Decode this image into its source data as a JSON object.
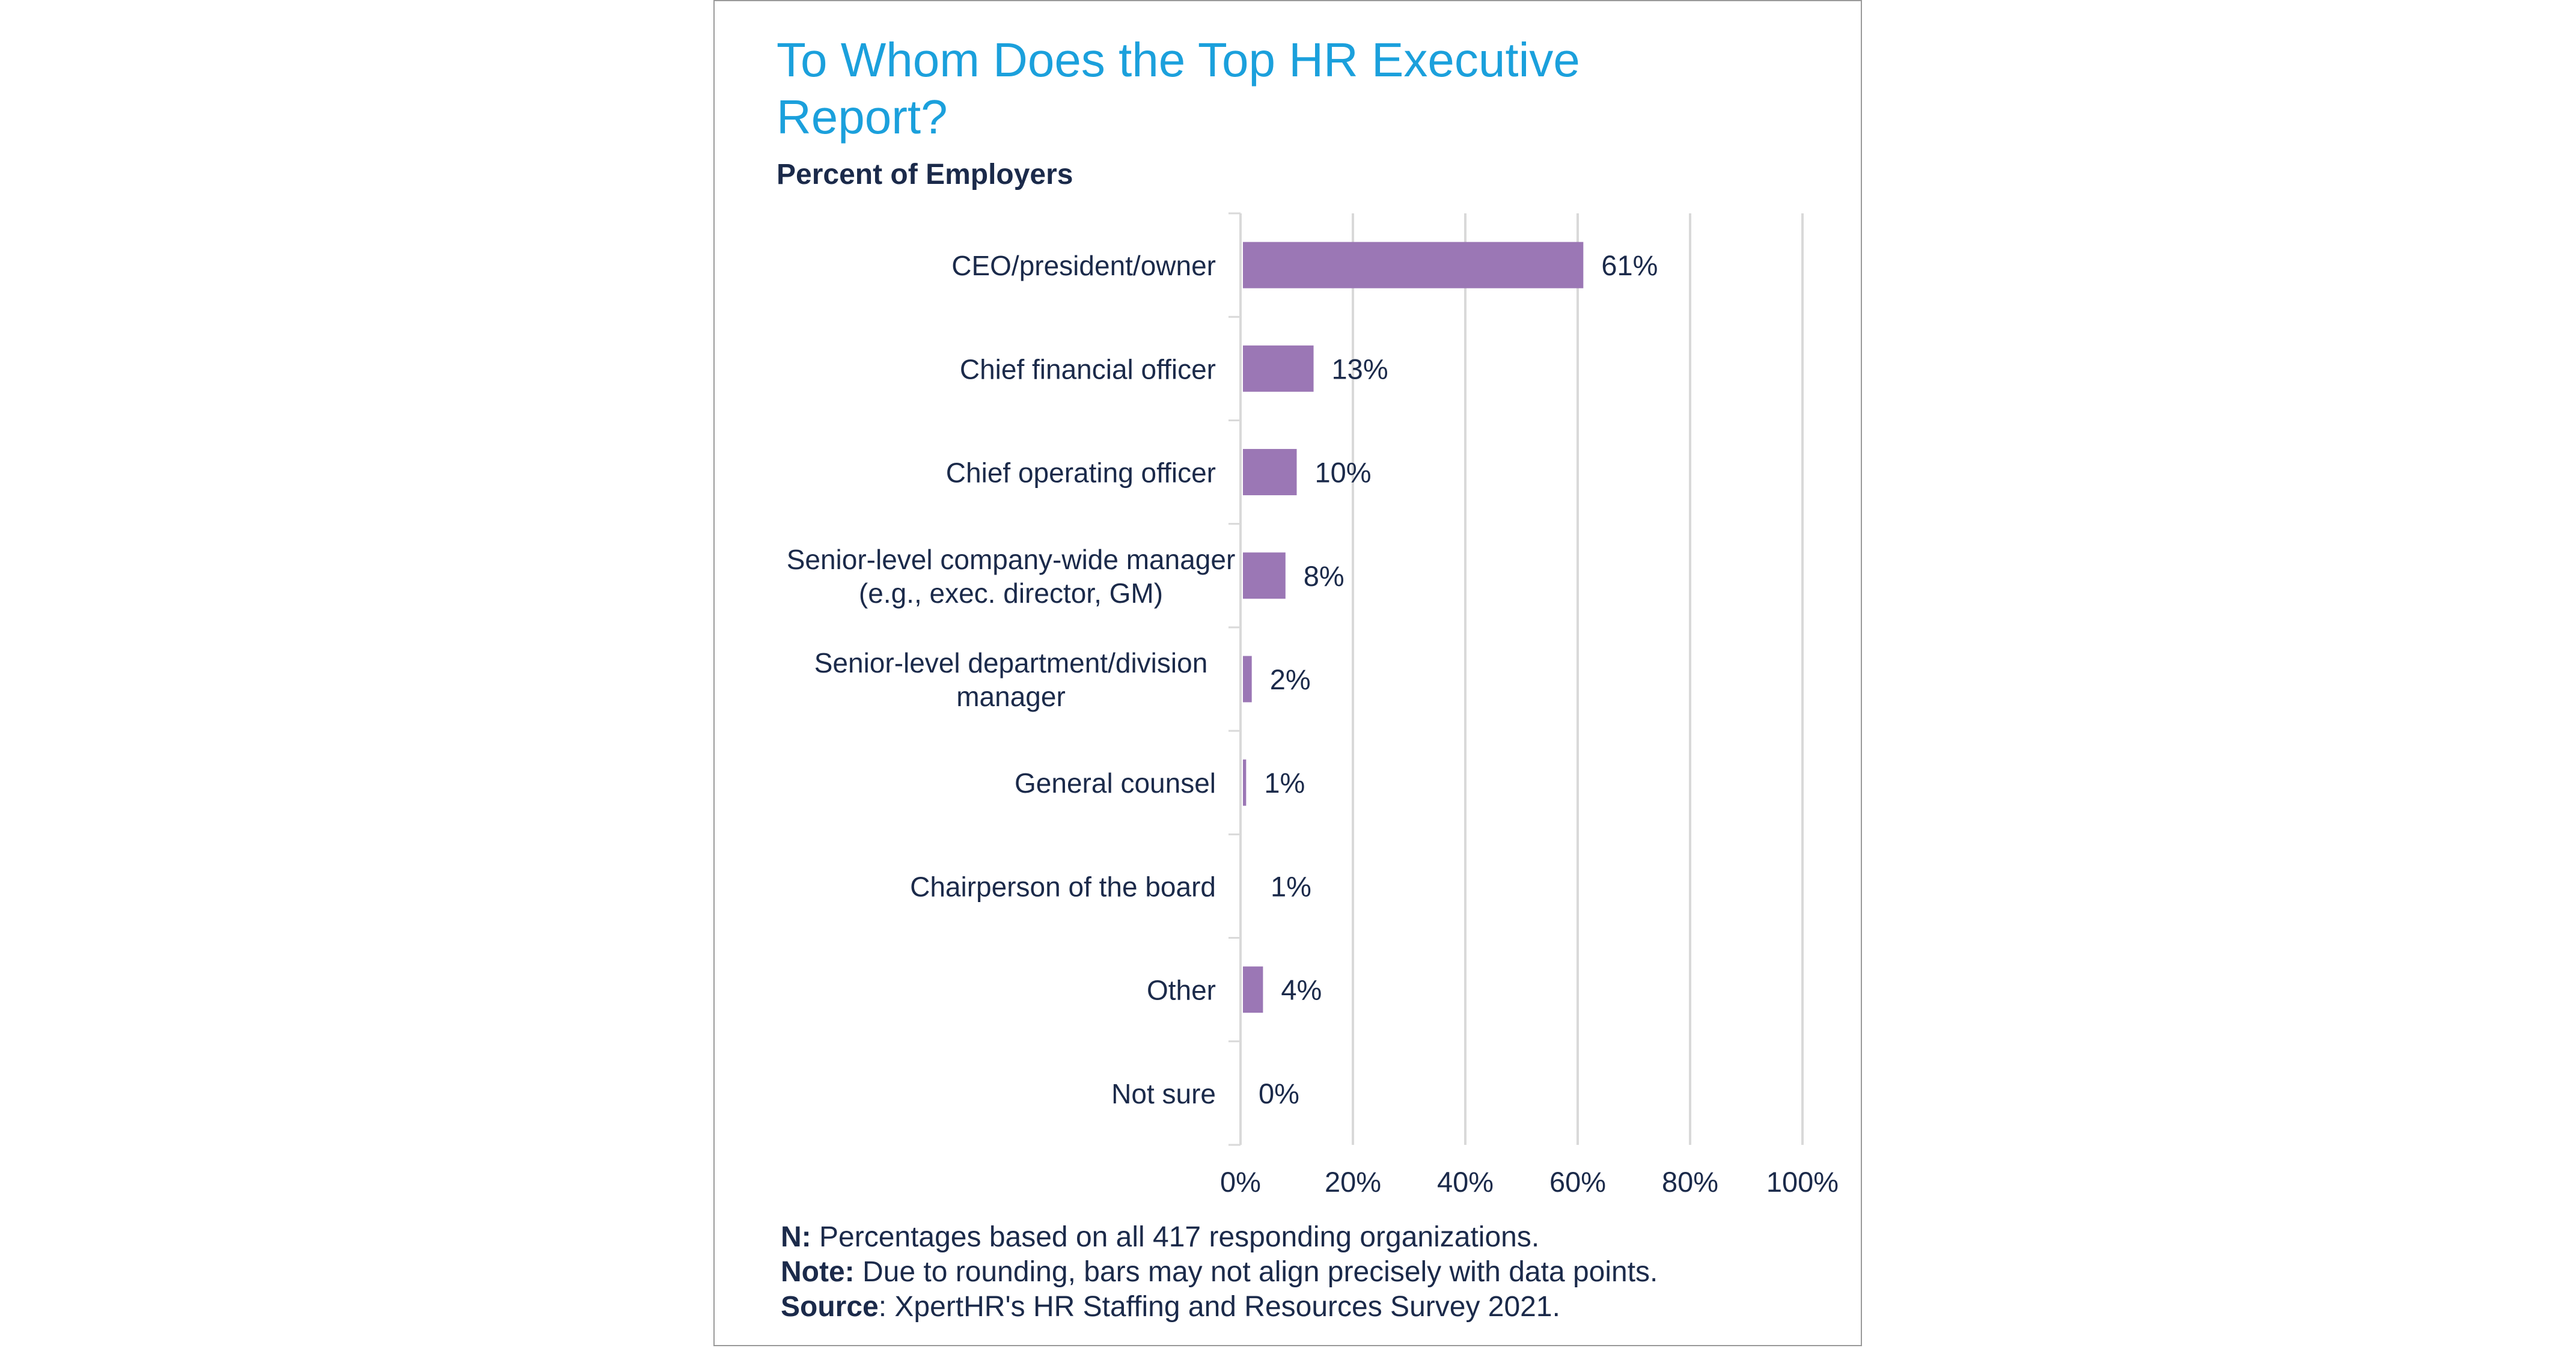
{
  "title": "To Whom Does the Top HR Executive Report?",
  "subtitle": "Percent of Employers",
  "chart_data": {
    "type": "bar",
    "orientation": "horizontal",
    "categories": [
      "CEO/president/owner",
      "Chief financial officer",
      "Chief operating officer",
      "Senior-level company-wide manager (e.g., exec. director, GM)",
      "Senior-level department/division manager",
      "General counsel",
      "Chairperson of the board",
      "Other",
      "Not sure"
    ],
    "category_lines": [
      [
        "CEO/president/owner"
      ],
      [
        "Chief financial officer"
      ],
      [
        "Chief operating officer"
      ],
      [
        "Senior-level company-wide manager",
        "(e.g., exec. director, GM)"
      ],
      [
        "Senior-level department/division",
        "manager"
      ],
      [
        "General counsel"
      ],
      [
        "Chairperson of the board"
      ],
      [
        "Other"
      ],
      [
        "Not sure"
      ]
    ],
    "values": [
      61,
      13,
      10,
      8,
      2,
      1,
      1,
      4,
      0
    ],
    "data_labels": [
      "61%",
      "13%",
      "10%",
      "8%",
      "2%",
      "1%",
      "1%",
      "4%",
      "0%"
    ],
    "xlim": [
      0,
      100
    ],
    "xticks": [
      "0%",
      "20%",
      "40%",
      "60%",
      "80%",
      "100%"
    ],
    "grid": true,
    "bar_color": "#9b77b5"
  },
  "notes": [
    {
      "label": "N:",
      "text": " Percentages based on all 417 responding organizations."
    },
    {
      "label": "Note:",
      "text": " Due to rounding, bars may not align precisely with data points."
    },
    {
      "label": "Source",
      "text": ": XpertHR's HR Staffing and Resources Survey 2021."
    }
  ]
}
